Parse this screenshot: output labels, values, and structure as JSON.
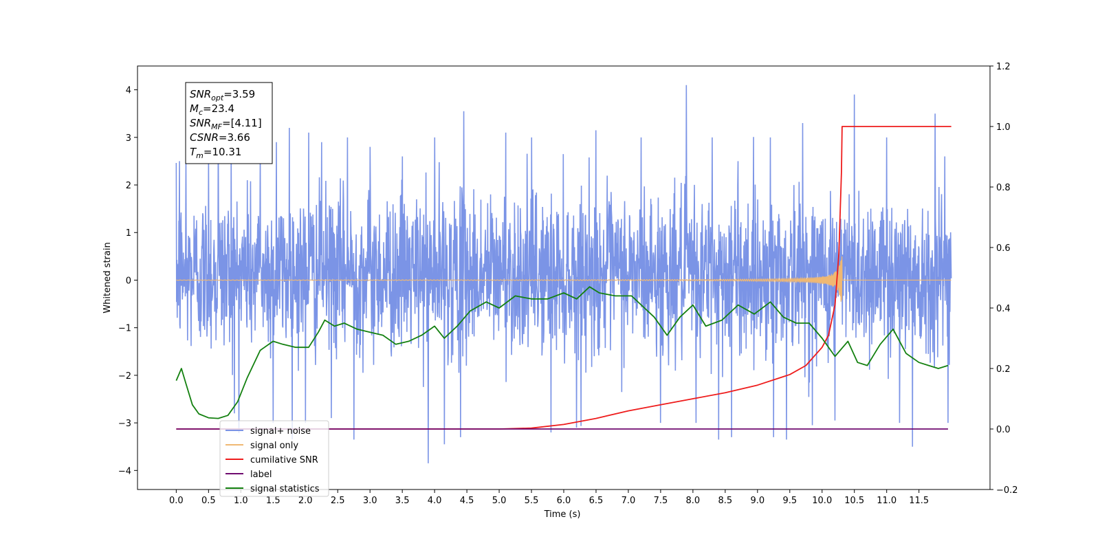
{
  "chart_data": {
    "type": "line",
    "xlabel": "Time (s)",
    "ylabel": "Whitened strain",
    "xlim": [
      -0.6,
      12.6
    ],
    "ylim": [
      -4.4,
      4.5
    ],
    "y2lim": [
      -0.2,
      1.2
    ],
    "xticks": [
      "0.0",
      "0.5",
      "1.0",
      "1.5",
      "2.0",
      "2.5",
      "3.0",
      "3.5",
      "4.0",
      "4.5",
      "5.0",
      "5.5",
      "6.0",
      "6.5",
      "7.0",
      "7.5",
      "8.0",
      "8.5",
      "9.0",
      "9.5",
      "10.0",
      "10.5",
      "11.0",
      "11.5"
    ],
    "yticks": [
      "−4",
      "−3",
      "−2",
      "−1",
      "0",
      "1",
      "2",
      "3",
      "4"
    ],
    "y2ticks": [
      "−0.2",
      "0.0",
      "0.2",
      "0.4",
      "0.6",
      "0.8",
      "1.0",
      "1.2"
    ],
    "grid": false,
    "legend_position": "lower-left",
    "annotation": {
      "lines": [
        {
          "main": "SNR",
          "sub": "opt",
          "rest": "=3.59"
        },
        {
          "main": "M",
          "sub": "c",
          "rest": "=23.4"
        },
        {
          "main": "SNR",
          "sub": "MF",
          "rest": "=[4.11]"
        },
        {
          "main": "CSNR",
          "sub": "",
          "rest": "=3.66"
        },
        {
          "main": "T",
          "sub": "m",
          "rest": "=10.31"
        }
      ]
    },
    "series": [
      {
        "name": "signal+ noise",
        "axis": "left",
        "color": "#7b94e6",
        "kind": "noise",
        "x_range": [
          0.0,
          12.0
        ],
        "typical_range": [
          -1.6,
          1.9
        ],
        "spikes": [
          [
            0.05,
            2.5
          ],
          [
            0.15,
            2.6
          ],
          [
            0.5,
            2.6
          ],
          [
            0.65,
            3.1
          ],
          [
            0.85,
            2.9
          ],
          [
            1.1,
            2.1
          ],
          [
            1.3,
            2.7
          ],
          [
            1.55,
            2.9
          ],
          [
            1.75,
            3.2
          ],
          [
            2.05,
            3.1
          ],
          [
            2.25,
            2.9
          ],
          [
            2.65,
            3.0
          ],
          [
            3.0,
            2.8
          ],
          [
            3.5,
            2.6
          ],
          [
            4.0,
            3.0
          ],
          [
            4.45,
            3.55
          ],
          [
            5.1,
            3.1
          ],
          [
            5.5,
            3.0
          ],
          [
            6.5,
            3.15
          ],
          [
            7.2,
            3.0
          ],
          [
            7.9,
            4.1
          ],
          [
            8.3,
            3.0
          ],
          [
            8.7,
            2.5
          ],
          [
            9.2,
            3.0
          ],
          [
            9.7,
            3.3
          ],
          [
            10.5,
            3.9
          ],
          [
            11.0,
            3.0
          ],
          [
            11.75,
            3.5
          ],
          [
            11.9,
            2.6
          ],
          [
            0.05,
            -2.9
          ],
          [
            0.5,
            -2.6
          ],
          [
            0.9,
            -2.8
          ],
          [
            1.5,
            -3.0
          ],
          [
            2.0,
            -3.0
          ],
          [
            2.4,
            -2.9
          ],
          [
            2.75,
            -3.35
          ],
          [
            3.0,
            -3.05
          ],
          [
            3.5,
            -3.0
          ],
          [
            3.9,
            -3.85
          ],
          [
            4.15,
            -3.45
          ],
          [
            4.4,
            -3.3
          ],
          [
            5.5,
            -2.8
          ],
          [
            5.8,
            -3.2
          ],
          [
            6.2,
            -3.1
          ],
          [
            7.5,
            -3.0
          ],
          [
            8.05,
            -3.0
          ],
          [
            8.4,
            -3.35
          ],
          [
            8.6,
            -3.3
          ],
          [
            9.25,
            -3.3
          ],
          [
            9.45,
            -3.35
          ],
          [
            9.85,
            -3.05
          ],
          [
            10.2,
            -2.95
          ],
          [
            10.5,
            -2.9
          ],
          [
            11.2,
            -3.0
          ],
          [
            11.4,
            -3.5
          ],
          [
            11.95,
            -3.0
          ]
        ]
      },
      {
        "name": "signal only",
        "axis": "left",
        "color": "#f0b872",
        "kind": "chirp",
        "x_range": [
          0.0,
          12.0
        ],
        "merger_time": 10.31,
        "peak_amplitude": 0.7
      },
      {
        "name": "cumilative SNR",
        "axis": "right",
        "color": "#ee1b1b",
        "x": [
          0.0,
          5.0,
          5.5,
          6.0,
          6.5,
          7.0,
          7.5,
          8.0,
          8.5,
          9.0,
          9.5,
          9.75,
          10.0,
          10.1,
          10.2,
          10.26,
          10.3,
          10.31,
          12.0
        ],
        "y": [
          0.0,
          0.0,
          0.003,
          0.015,
          0.035,
          0.06,
          0.08,
          0.1,
          0.12,
          0.145,
          0.18,
          0.21,
          0.27,
          0.31,
          0.41,
          0.58,
          0.85,
          1.0,
          1.0
        ]
      },
      {
        "name": "label",
        "axis": "right",
        "color": "#6f0a6f",
        "x": [
          0.0,
          11.95
        ],
        "y": [
          0.0,
          0.0
        ]
      },
      {
        "name": "signal statistics",
        "axis": "right",
        "color": "#13800f",
        "x": [
          0.0,
          0.08,
          0.15,
          0.25,
          0.35,
          0.5,
          0.65,
          0.8,
          0.95,
          1.1,
          1.3,
          1.5,
          1.65,
          1.85,
          2.05,
          2.2,
          2.3,
          2.45,
          2.6,
          2.8,
          3.0,
          3.2,
          3.4,
          3.6,
          3.8,
          4.0,
          4.15,
          4.35,
          4.55,
          4.8,
          5.0,
          5.25,
          5.5,
          5.75,
          6.0,
          6.2,
          6.4,
          6.55,
          6.8,
          7.05,
          7.25,
          7.4,
          7.6,
          7.8,
          8.0,
          8.2,
          8.45,
          8.7,
          8.95,
          9.2,
          9.4,
          9.6,
          9.8,
          10.0,
          10.2,
          10.4,
          10.55,
          10.7,
          10.9,
          11.1,
          11.3,
          11.5,
          11.65,
          11.8,
          11.95
        ],
        "y": [
          0.16,
          0.2,
          0.15,
          0.08,
          0.05,
          0.037,
          0.035,
          0.045,
          0.09,
          0.17,
          0.26,
          0.29,
          0.28,
          0.27,
          0.27,
          0.32,
          0.36,
          0.34,
          0.35,
          0.33,
          0.32,
          0.31,
          0.28,
          0.29,
          0.31,
          0.34,
          0.3,
          0.34,
          0.39,
          0.42,
          0.4,
          0.44,
          0.43,
          0.43,
          0.45,
          0.43,
          0.47,
          0.45,
          0.44,
          0.44,
          0.4,
          0.37,
          0.31,
          0.37,
          0.41,
          0.34,
          0.36,
          0.41,
          0.38,
          0.42,
          0.37,
          0.35,
          0.35,
          0.3,
          0.24,
          0.29,
          0.22,
          0.21,
          0.28,
          0.33,
          0.25,
          0.22,
          0.21,
          0.2,
          0.21
        ]
      }
    ]
  }
}
